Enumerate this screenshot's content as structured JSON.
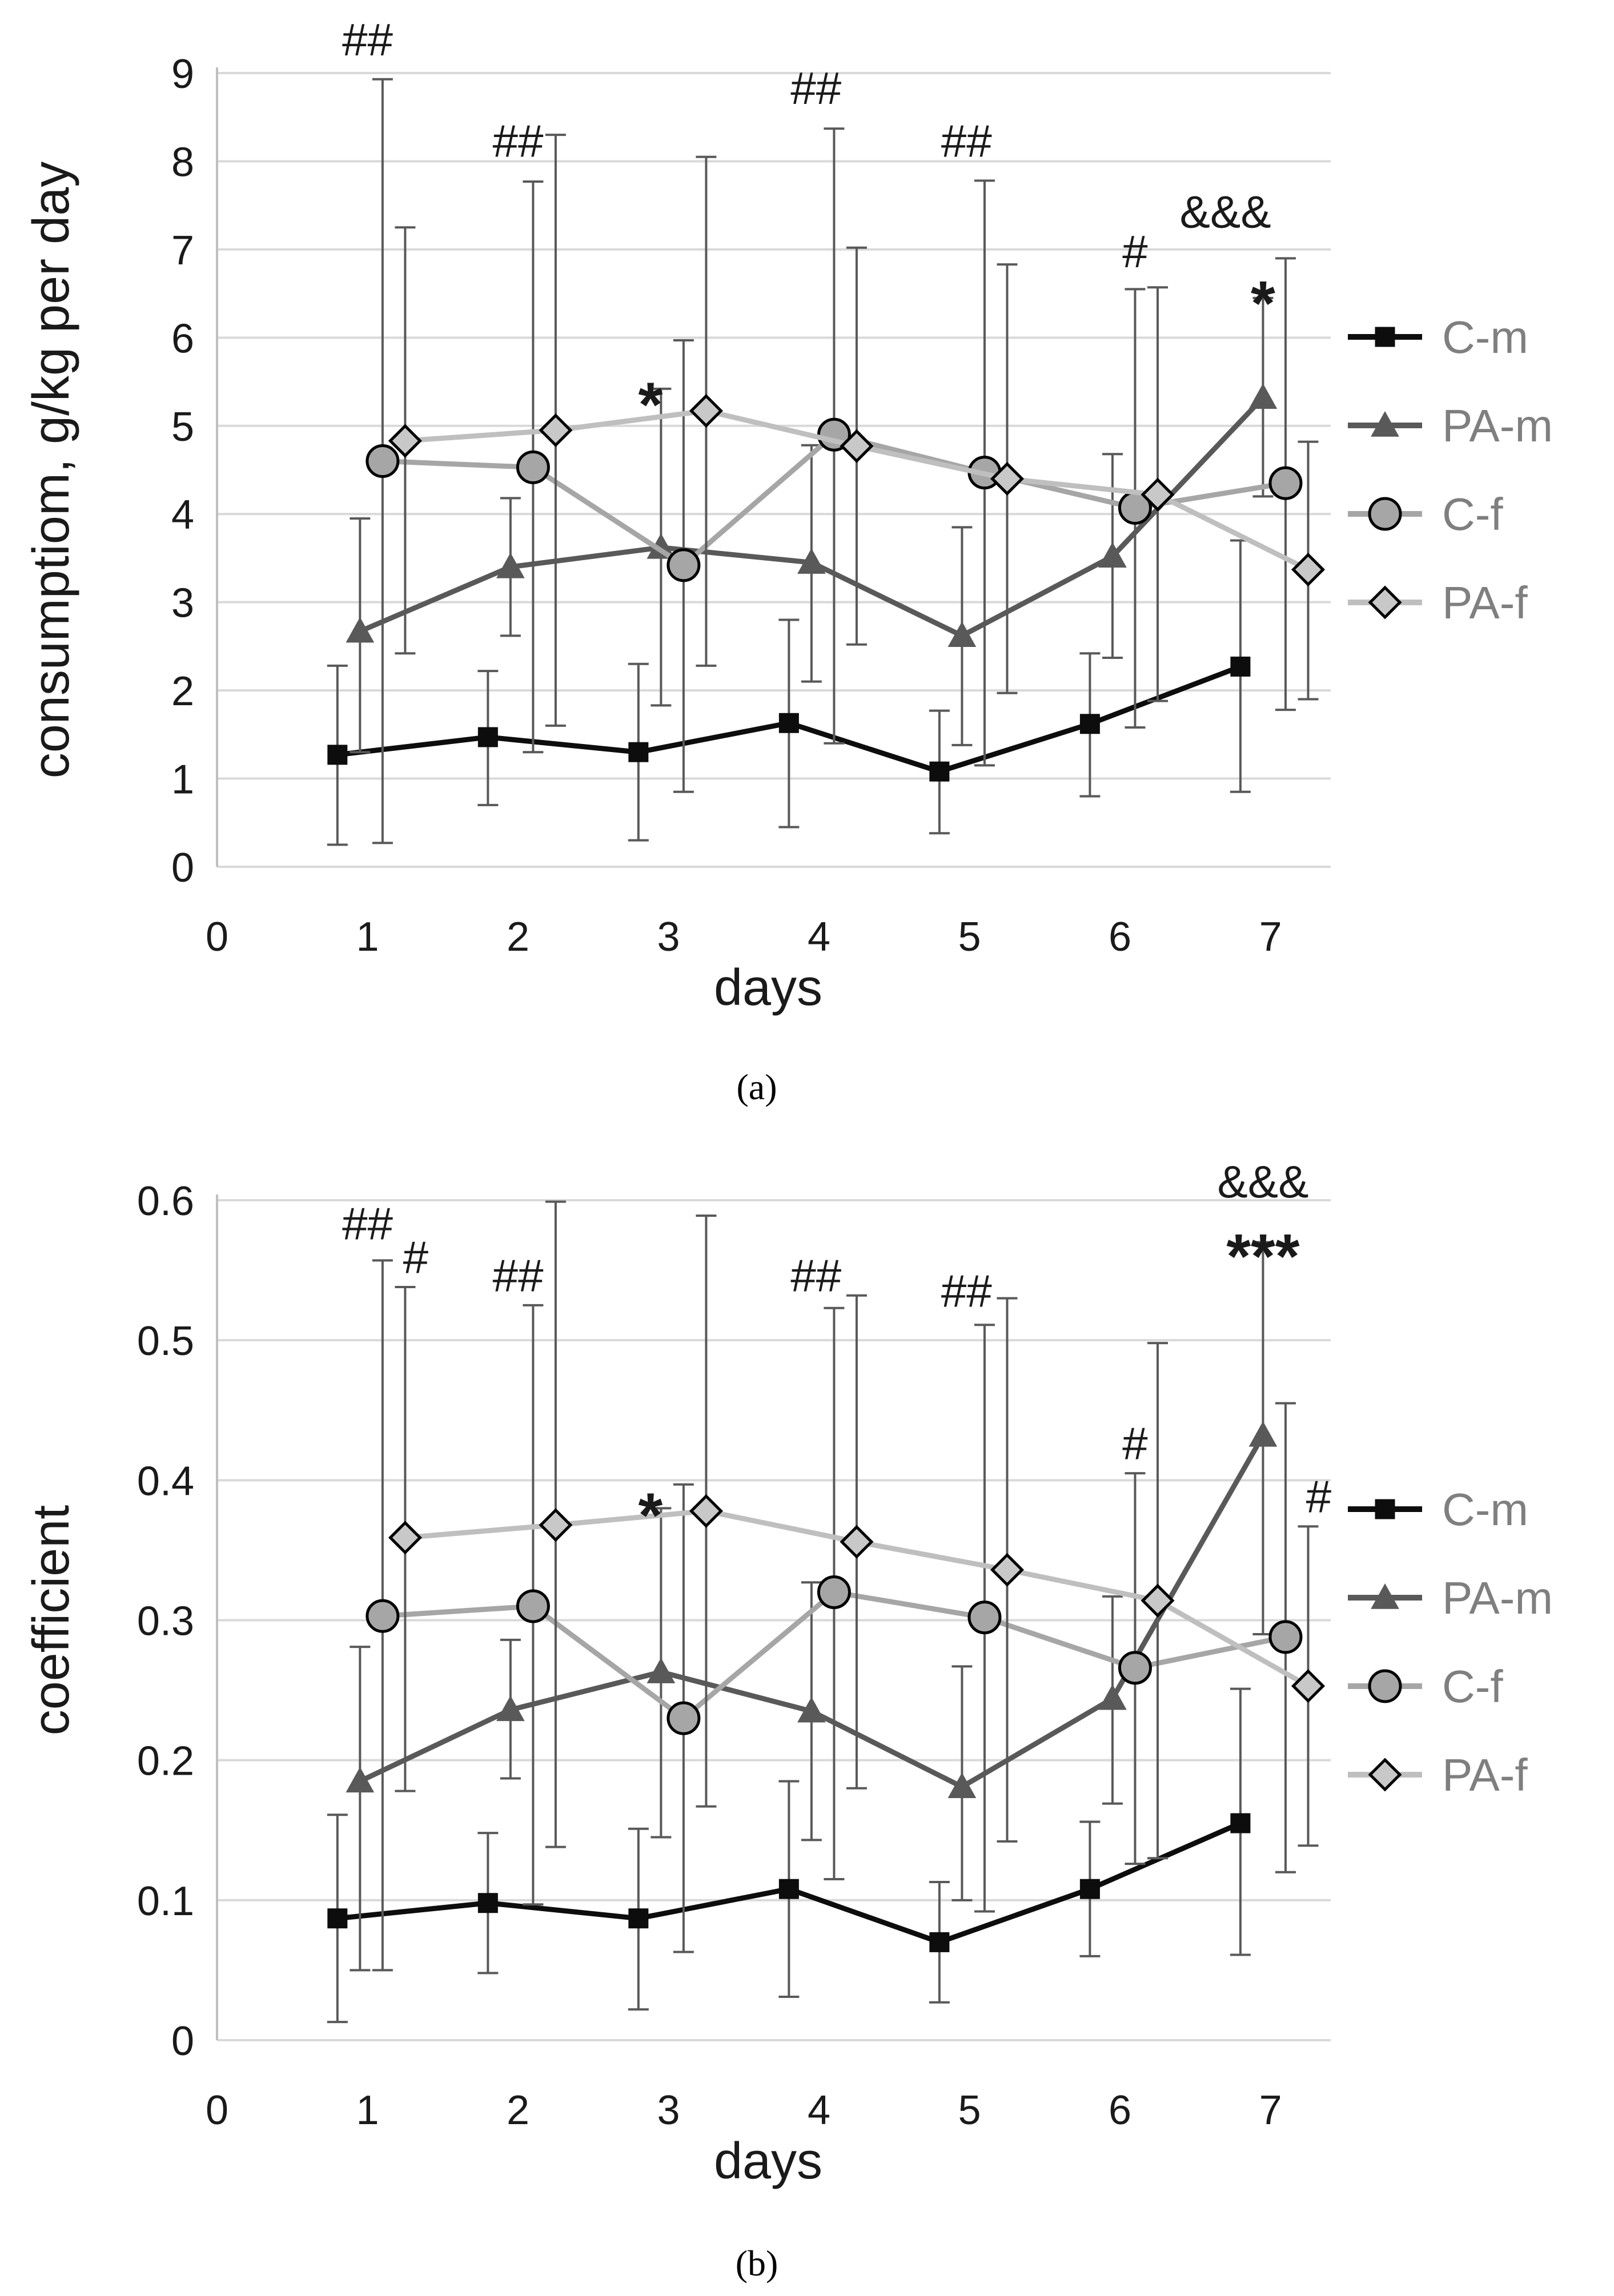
{
  "colors": {
    "C-m": "#0d0d0d",
    "PA-m": "#595959",
    "C-f": "#a6a6a6",
    "PA-f": "#bfbfbf",
    "marker_C-f": "#a6a6a6",
    "marker_PA-f": "#c8c8c8",
    "grid": "#d9d9d9",
    "errorbar": "#595959"
  },
  "chart_data": [
    {
      "id": "a",
      "type": "line",
      "caption": "(a)",
      "xlabel": "days",
      "ylabel": "consumptiom, g/kg per day",
      "xlim": [
        0,
        7.4
      ],
      "ylim": [
        0,
        9
      ],
      "xticks": [
        "0",
        "1",
        "2",
        "3",
        "4",
        "5",
        "6",
        "7"
      ],
      "yticks": [
        "0",
        "1",
        "2",
        "3",
        "4",
        "5",
        "6",
        "7",
        "8",
        "9"
      ],
      "grid": true,
      "legend": [
        "C-m",
        "PA-m",
        "C-f",
        "PA-f"
      ],
      "series": [
        {
          "name": "C-m",
          "marker": "square",
          "x": [
            0.8,
            1.8,
            2.8,
            3.8,
            4.8,
            5.8,
            6.8
          ],
          "values": [
            1.27,
            1.47,
            1.3,
            1.63,
            1.08,
            1.62,
            2.27
          ],
          "lo": [
            0.25,
            0.7,
            0.3,
            0.45,
            0.38,
            0.8,
            0.85
          ],
          "hi": [
            2.28,
            2.22,
            2.3,
            2.8,
            1.77,
            2.42,
            3.7
          ]
        },
        {
          "name": "PA-m",
          "marker": "triangle",
          "x": [
            0.95,
            1.95,
            2.95,
            3.95,
            4.95,
            5.95,
            6.95
          ],
          "values": [
            2.67,
            3.4,
            3.62,
            3.45,
            2.62,
            3.52,
            5.32
          ],
          "lo": [
            1.3,
            2.62,
            1.83,
            2.1,
            1.38,
            2.37,
            4.2
          ],
          "hi": [
            3.95,
            4.18,
            5.42,
            4.78,
            3.85,
            4.68,
            6.45
          ]
        },
        {
          "name": "C-f",
          "marker": "circle",
          "x": [
            1.1,
            2.1,
            3.1,
            4.1,
            5.1,
            6.1,
            7.1
          ],
          "values": [
            4.6,
            4.53,
            3.42,
            4.9,
            4.47,
            4.07,
            4.35
          ],
          "lo": [
            0.27,
            1.3,
            0.85,
            1.4,
            1.15,
            1.58,
            1.78
          ],
          "hi": [
            8.93,
            7.77,
            5.97,
            8.37,
            7.78,
            6.55,
            6.9
          ]
        },
        {
          "name": "PA-f",
          "marker": "diamond",
          "x": [
            1.25,
            2.25,
            3.25,
            4.25,
            5.25,
            6.25,
            7.25
          ],
          "values": [
            4.83,
            4.95,
            5.17,
            4.77,
            4.4,
            4.22,
            3.37
          ],
          "lo": [
            2.42,
            1.6,
            2.28,
            2.52,
            1.97,
            1.88,
            1.9
          ],
          "hi": [
            7.25,
            8.3,
            8.05,
            7.02,
            6.83,
            6.57,
            4.82
          ]
        }
      ],
      "annotations": [
        {
          "text": "##",
          "x": 1.0,
          "y": 9.2,
          "style": "annot"
        },
        {
          "text": "##",
          "x": 2.0,
          "y": 8.05,
          "style": "annot"
        },
        {
          "text": "##",
          "x": 3.98,
          "y": 8.65,
          "style": "annot"
        },
        {
          "text": "##",
          "x": 4.98,
          "y": 8.05,
          "style": "annot"
        },
        {
          "text": "#",
          "x": 6.1,
          "y": 6.8,
          "style": "annot"
        },
        {
          "text": "&&&",
          "x": 6.7,
          "y": 7.25,
          "style": "annot"
        },
        {
          "text": "*",
          "x": 2.88,
          "y": 5.35,
          "style": "annot-star"
        },
        {
          "text": "*",
          "x": 6.95,
          "y": 6.5,
          "style": "annot-star"
        }
      ]
    },
    {
      "id": "b",
      "type": "line",
      "caption": "(b)",
      "xlabel": "days",
      "ylabel": "coefficient",
      "xlim": [
        0,
        7.4
      ],
      "ylim": [
        0,
        0.6
      ],
      "xticks": [
        "0",
        "1",
        "2",
        "3",
        "4",
        "5",
        "6",
        "7"
      ],
      "yticks": [
        "0",
        "0.1",
        "0.2",
        "0.3",
        "0.4",
        "0.5",
        "0.6"
      ],
      "grid": true,
      "legend": [
        "C-m",
        "PA-m",
        "C-f",
        "PA-f"
      ],
      "series": [
        {
          "name": "C-m",
          "marker": "square",
          "x": [
            0.8,
            1.8,
            2.8,
            3.8,
            4.8,
            5.8,
            6.8
          ],
          "values": [
            0.087,
            0.098,
            0.087,
            0.108,
            0.07,
            0.108,
            0.155
          ],
          "lo": [
            0.013,
            0.048,
            0.022,
            0.031,
            0.027,
            0.06,
            0.061
          ],
          "hi": [
            0.161,
            0.148,
            0.151,
            0.185,
            0.113,
            0.156,
            0.251
          ]
        },
        {
          "name": "PA-m",
          "marker": "triangle",
          "x": [
            0.95,
            1.95,
            2.95,
            3.95,
            4.95,
            5.95,
            6.95
          ],
          "values": [
            0.185,
            0.236,
            0.263,
            0.235,
            0.181,
            0.244,
            0.432
          ],
          "lo": [
            0.05,
            0.187,
            0.145,
            0.143,
            0.1,
            0.169,
            0.29
          ],
          "hi": [
            0.281,
            0.286,
            0.38,
            0.327,
            0.267,
            0.317,
            0.57
          ]
        },
        {
          "name": "C-f",
          "marker": "circle",
          "x": [
            1.1,
            2.1,
            3.1,
            4.1,
            5.1,
            6.1,
            7.1
          ],
          "values": [
            0.303,
            0.31,
            0.23,
            0.32,
            0.302,
            0.266,
            0.288
          ],
          "lo": [
            0.05,
            0.097,
            0.063,
            0.115,
            0.092,
            0.126,
            0.12
          ],
          "hi": [
            0.557,
            0.525,
            0.397,
            0.523,
            0.511,
            0.405,
            0.455
          ]
        },
        {
          "name": "PA-f",
          "marker": "diamond",
          "x": [
            1.25,
            2.25,
            3.25,
            4.25,
            5.25,
            6.25,
            7.25
          ],
          "values": [
            0.359,
            0.368,
            0.378,
            0.356,
            0.336,
            0.314,
            0.253
          ],
          "lo": [
            0.178,
            0.138,
            0.167,
            0.18,
            0.142,
            0.13,
            0.139
          ],
          "hi": [
            0.538,
            0.599,
            0.589,
            0.532,
            0.53,
            0.498,
            0.367
          ]
        }
      ],
      "annotations": [
        {
          "text": "##",
          "x": 1.0,
          "y": 0.572,
          "style": "annot"
        },
        {
          "text": "#",
          "x": 1.32,
          "y": 0.548,
          "style": "annot"
        },
        {
          "text": "##",
          "x": 2.0,
          "y": 0.535,
          "style": "annot"
        },
        {
          "text": "##",
          "x": 3.98,
          "y": 0.535,
          "style": "annot"
        },
        {
          "text": "##",
          "x": 4.98,
          "y": 0.524,
          "style": "annot"
        },
        {
          "text": "#",
          "x": 6.1,
          "y": 0.415,
          "style": "annot"
        },
        {
          "text": "&&&",
          "x": 6.95,
          "y": 0.602,
          "style": "annot"
        },
        {
          "text": "***",
          "x": 6.95,
          "y": 0.567,
          "style": "annot-star"
        },
        {
          "text": "*",
          "x": 2.88,
          "y": 0.382,
          "style": "annot-star"
        },
        {
          "text": "#",
          "x": 7.32,
          "y": 0.377,
          "style": "annot"
        }
      ]
    }
  ]
}
